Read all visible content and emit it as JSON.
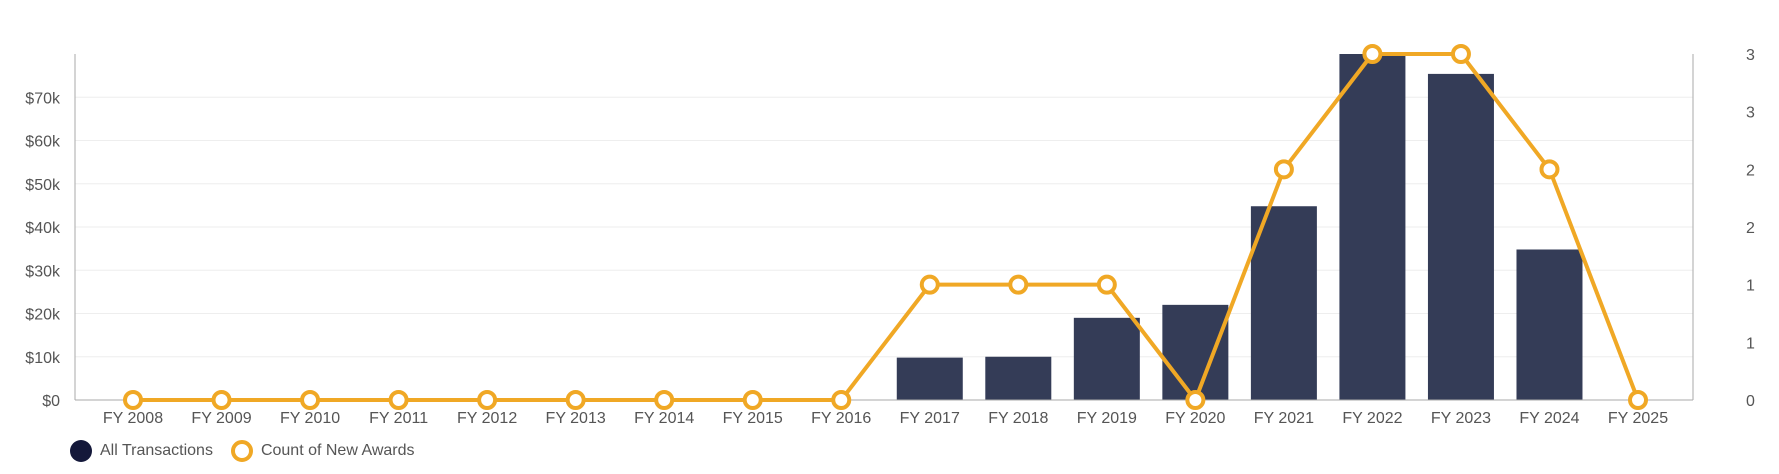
{
  "chart_data": {
    "type": "bar",
    "categories": [
      "FY 2008",
      "FY 2009",
      "FY 2010",
      "FY 2011",
      "FY 2012",
      "FY 2013",
      "FY 2014",
      "FY 2015",
      "FY 2016",
      "FY 2017",
      "FY 2018",
      "FY 2019",
      "FY 2020",
      "FY 2021",
      "FY 2022",
      "FY 2023",
      "FY 2024",
      "FY 2025"
    ],
    "series": [
      {
        "name": "All Transactions",
        "type": "bar",
        "axis": "left",
        "color": "#343c57",
        "values": [
          0,
          0,
          0,
          0,
          0,
          0,
          0,
          0,
          0,
          9800,
          10000,
          19000,
          22000,
          44800,
          80000,
          75400,
          34800,
          0
        ]
      },
      {
        "name": "Count of New Awards",
        "type": "line",
        "axis": "right",
        "color": "#f0a825",
        "values": [
          0,
          0,
          0,
          0,
          0,
          0,
          0,
          0,
          0,
          1,
          1,
          1,
          0,
          2,
          3,
          3,
          2,
          0
        ]
      }
    ],
    "y_left": {
      "ticks": [
        0,
        10000,
        20000,
        30000,
        40000,
        50000,
        60000,
        70000
      ],
      "tick_labels": [
        "$0",
        "$10k",
        "$20k",
        "$30k",
        "$40k",
        "$50k",
        "$60k",
        "$70k"
      ],
      "ylim": [
        0,
        80000
      ]
    },
    "y_right": {
      "ticks": [
        0,
        0.5,
        1,
        1.5,
        2,
        2.5,
        3
      ],
      "tick_labels": [
        "0",
        "1",
        "1",
        "2",
        "2",
        "3",
        "3"
      ],
      "ylim": [
        0,
        3
      ]
    },
    "grid": true,
    "legend_position": "bottom-left"
  }
}
